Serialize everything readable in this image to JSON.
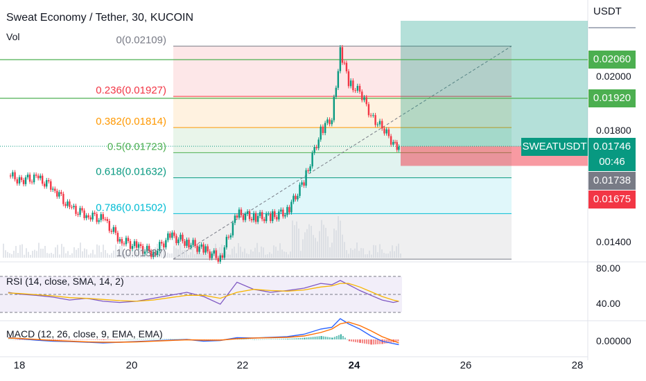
{
  "header": {
    "title": "Sweat Economy / Tether, 30, KUCOIN",
    "volume_label": "Vol"
  },
  "price_axis": {
    "currency": "USDT",
    "ticks": [
      "0.02000",
      "0.01800",
      "0.01400"
    ],
    "tags": [
      {
        "text": "0.02060",
        "color": "#4caf50"
      },
      {
        "text": "0.01920",
        "color": "#4caf50"
      },
      {
        "text": "0.01746",
        "color": "#089981"
      },
      {
        "text": "00:46",
        "color": "#089981"
      },
      {
        "text": "0.01738",
        "color": "#787b86"
      },
      {
        "text": "0.01675",
        "color": "#f23645"
      }
    ],
    "symbol_tag": "SWEATUSDT"
  },
  "fib_levels": [
    {
      "label": "0(0.02109)",
      "value": 0.02109,
      "color": "#787b86"
    },
    {
      "label": "0.236(0.01927)",
      "value": 0.01927,
      "color": "#f23645"
    },
    {
      "label": "0.382(0.01814)",
      "value": 0.01814,
      "color": "#ff9800"
    },
    {
      "label": "0.5(0.01723)",
      "value": 0.01723,
      "color": "#4caf50"
    },
    {
      "label": "0.618(0.01632)",
      "value": 0.01632,
      "color": "#089981"
    },
    {
      "label": "0.786(0.01502)",
      "value": 0.01502,
      "color": "#00bcd4"
    },
    {
      "label": "1(0.01337)",
      "value": 0.01337,
      "color": "#787b86"
    }
  ],
  "rsi": {
    "label": "RSI (14, close, SMA, 14, 2)",
    "ticks": [
      "80.00",
      "40.00"
    ]
  },
  "macd": {
    "label": "MACD (12, 26, close, 9, EMA, EMA)",
    "ticks": [
      "0.00000"
    ]
  },
  "x_axis": {
    "ticks": [
      "18",
      "20",
      "22",
      "24",
      "26",
      "28"
    ]
  },
  "chart_data": {
    "type": "line",
    "title": "Sweat Economy / Tether, 30, KUCOIN",
    "x_label": "",
    "y_label": "USDT",
    "x": [
      17.8,
      18.0,
      18.3,
      18.6,
      18.9,
      19.2,
      19.5,
      19.8,
      20.1,
      20.4,
      20.7,
      21.0,
      21.3,
      21.6,
      21.9,
      22.2,
      22.5,
      22.8,
      23.1,
      23.4,
      23.6,
      23.75,
      23.9,
      24.1,
      24.3,
      24.5,
      24.7,
      24.8
    ],
    "price": [
      0.0164,
      0.01625,
      0.0163,
      0.016,
      0.0152,
      0.015,
      0.0148,
      0.0141,
      0.0138,
      0.0136,
      0.0142,
      0.014,
      0.0137,
      0.0134,
      0.015,
      0.0149,
      0.0149,
      0.0151,
      0.0162,
      0.018,
      0.0185,
      0.0209,
      0.0198,
      0.0194,
      0.0186,
      0.0181,
      0.0176,
      0.01746
    ],
    "rsi_ylim": [
      20,
      90
    ],
    "rsi": [
      55,
      52,
      50,
      47,
      42,
      45,
      40,
      38,
      40,
      45,
      50,
      55,
      48,
      35,
      72,
      60,
      55,
      58,
      62,
      70,
      68,
      75,
      68,
      58,
      50,
      42,
      38,
      40
    ],
    "rsi_ma": [
      54,
      53,
      51,
      49,
      46,
      45,
      43,
      41,
      40,
      42,
      46,
      50,
      50,
      45,
      55,
      60,
      58,
      57,
      59,
      64,
      66,
      70,
      70,
      64,
      56,
      48,
      42,
      40
    ],
    "macd_ylim": [
      -0.0003,
      0.0007
    ],
    "macd": [
      5e-05,
      2e-05,
      -2e-05,
      -5e-05,
      -6e-05,
      -8e-05,
      -0.0001,
      -8e-05,
      -6e-05,
      -4e-05,
      -2e-05,
      0.0,
      -5e-05,
      -3e-05,
      5e-05,
      4e-05,
      6e-05,
      8e-05,
      0.00015,
      0.0003,
      0.00035,
      0.0006,
      0.00045,
      0.0003,
      0.0001,
      -5e-05,
      -0.00012,
      -0.00015
    ],
    "signal": [
      4e-05,
      3e-05,
      0.0,
      -3e-05,
      -5e-05,
      -7e-05,
      -8e-05,
      -8e-05,
      -7e-05,
      -5e-05,
      -3e-05,
      -1e-05,
      -2e-05,
      -2e-05,
      2e-05,
      4e-05,
      5e-05,
      6e-05,
      0.0001,
      0.0002,
      0.0003,
      0.00045,
      0.0005,
      0.0004,
      0.00025,
      8e-05,
      -4e-05,
      -0.0001
    ]
  }
}
